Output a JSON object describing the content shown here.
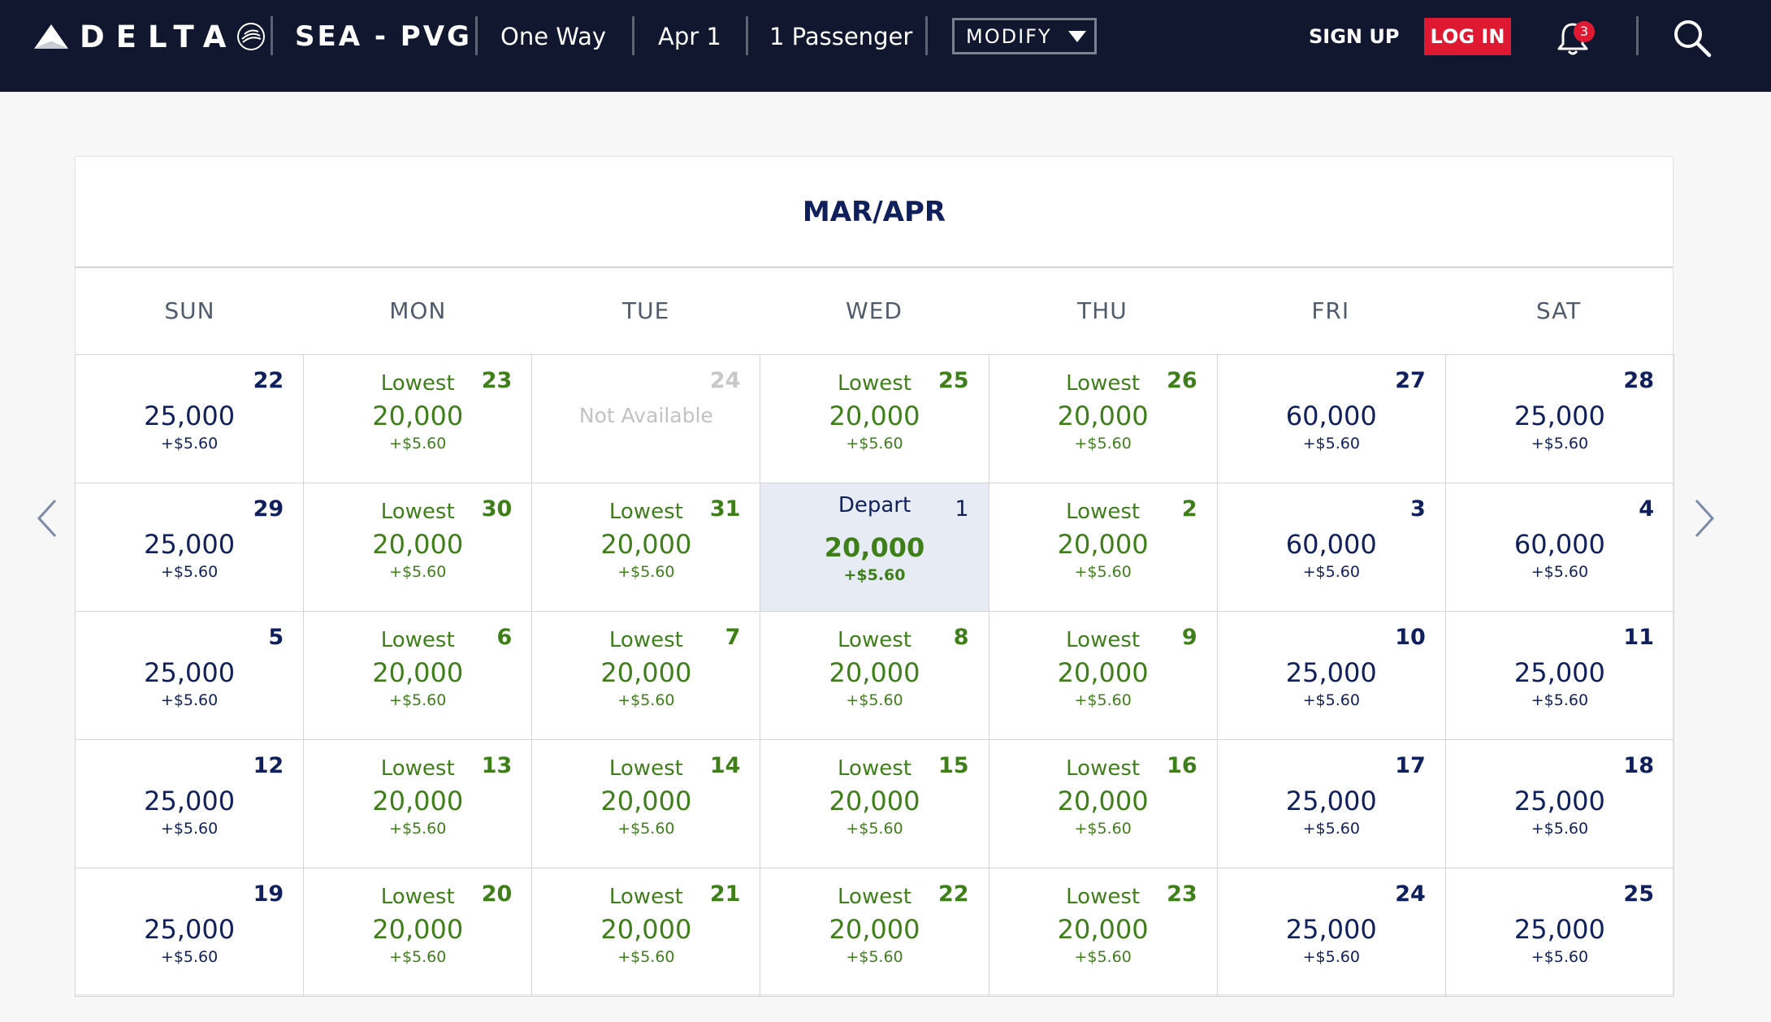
{
  "header": {
    "brand": "DELTA",
    "route": "SEA - PVG",
    "trip_type": "One Way",
    "date": "Apr 1",
    "passengers": "1 Passenger",
    "modify_label": "MODIFY",
    "signup_label": "SIGN UP",
    "login_label": "LOG IN",
    "notification_count": "3",
    "colors": {
      "bar": "#10172e",
      "login": "#e01933"
    }
  },
  "calendar": {
    "title": "MAR/APR",
    "weekdays": [
      "SUN",
      "MON",
      "TUE",
      "WED",
      "THU",
      "FRI",
      "SAT"
    ],
    "colors": {
      "navy": "#10205c",
      "green": "#3f7f1a",
      "selected": "#e7ecf4"
    },
    "weeks": [
      [
        {
          "day": "22",
          "tag": "",
          "price": "25,000",
          "fee": "+$5.60",
          "lowest": false
        },
        {
          "day": "23",
          "tag": "Lowest",
          "price": "20,000",
          "fee": "+$5.60",
          "lowest": true
        },
        {
          "day": "24",
          "tag": "",
          "price": "",
          "fee": "",
          "lowest": false,
          "unavailable": true,
          "note": "Not Available"
        },
        {
          "day": "25",
          "tag": "Lowest",
          "price": "20,000",
          "fee": "+$5.60",
          "lowest": true
        },
        {
          "day": "26",
          "tag": "Lowest",
          "price": "20,000",
          "fee": "+$5.60",
          "lowest": true
        },
        {
          "day": "27",
          "tag": "",
          "price": "60,000",
          "fee": "+$5.60",
          "lowest": false
        },
        {
          "day": "28",
          "tag": "",
          "price": "25,000",
          "fee": "+$5.60",
          "lowest": false
        }
      ],
      [
        {
          "day": "29",
          "tag": "",
          "price": "25,000",
          "fee": "+$5.60",
          "lowest": false
        },
        {
          "day": "30",
          "tag": "Lowest",
          "price": "20,000",
          "fee": "+$5.60",
          "lowest": true
        },
        {
          "day": "31",
          "tag": "Lowest",
          "price": "20,000",
          "fee": "+$5.60",
          "lowest": true
        },
        {
          "day": "1",
          "tag": "Depart",
          "price": "20,000",
          "fee": "+$5.60",
          "lowest": true,
          "selected": true
        },
        {
          "day": "2",
          "tag": "Lowest",
          "price": "20,000",
          "fee": "+$5.60",
          "lowest": true
        },
        {
          "day": "3",
          "tag": "",
          "price": "60,000",
          "fee": "+$5.60",
          "lowest": false
        },
        {
          "day": "4",
          "tag": "",
          "price": "60,000",
          "fee": "+$5.60",
          "lowest": false
        }
      ],
      [
        {
          "day": "5",
          "tag": "",
          "price": "25,000",
          "fee": "+$5.60",
          "lowest": false
        },
        {
          "day": "6",
          "tag": "Lowest",
          "price": "20,000",
          "fee": "+$5.60",
          "lowest": true
        },
        {
          "day": "7",
          "tag": "Lowest",
          "price": "20,000",
          "fee": "+$5.60",
          "lowest": true
        },
        {
          "day": "8",
          "tag": "Lowest",
          "price": "20,000",
          "fee": "+$5.60",
          "lowest": true
        },
        {
          "day": "9",
          "tag": "Lowest",
          "price": "20,000",
          "fee": "+$5.60",
          "lowest": true
        },
        {
          "day": "10",
          "tag": "",
          "price": "25,000",
          "fee": "+$5.60",
          "lowest": false
        },
        {
          "day": "11",
          "tag": "",
          "price": "25,000",
          "fee": "+$5.60",
          "lowest": false
        }
      ],
      [
        {
          "day": "12",
          "tag": "",
          "price": "25,000",
          "fee": "+$5.60",
          "lowest": false
        },
        {
          "day": "13",
          "tag": "Lowest",
          "price": "20,000",
          "fee": "+$5.60",
          "lowest": true
        },
        {
          "day": "14",
          "tag": "Lowest",
          "price": "20,000",
          "fee": "+$5.60",
          "lowest": true
        },
        {
          "day": "15",
          "tag": "Lowest",
          "price": "20,000",
          "fee": "+$5.60",
          "lowest": true
        },
        {
          "day": "16",
          "tag": "Lowest",
          "price": "20,000",
          "fee": "+$5.60",
          "lowest": true
        },
        {
          "day": "17",
          "tag": "",
          "price": "25,000",
          "fee": "+$5.60",
          "lowest": false
        },
        {
          "day": "18",
          "tag": "",
          "price": "25,000",
          "fee": "+$5.60",
          "lowest": false
        }
      ],
      [
        {
          "day": "19",
          "tag": "",
          "price": "25,000",
          "fee": "+$5.60",
          "lowest": false
        },
        {
          "day": "20",
          "tag": "Lowest",
          "price": "20,000",
          "fee": "+$5.60",
          "lowest": true
        },
        {
          "day": "21",
          "tag": "Lowest",
          "price": "20,000",
          "fee": "+$5.60",
          "lowest": true
        },
        {
          "day": "22",
          "tag": "Lowest",
          "price": "20,000",
          "fee": "+$5.60",
          "lowest": true
        },
        {
          "day": "23",
          "tag": "Lowest",
          "price": "20,000",
          "fee": "+$5.60",
          "lowest": true
        },
        {
          "day": "24",
          "tag": "",
          "price": "25,000",
          "fee": "+$5.60",
          "lowest": false
        },
        {
          "day": "25",
          "tag": "",
          "price": "25,000",
          "fee": "+$5.60",
          "lowest": false
        }
      ]
    ]
  },
  "navigation": {
    "prev_icon": "chevron-left-icon",
    "next_icon": "chevron-right-icon"
  }
}
